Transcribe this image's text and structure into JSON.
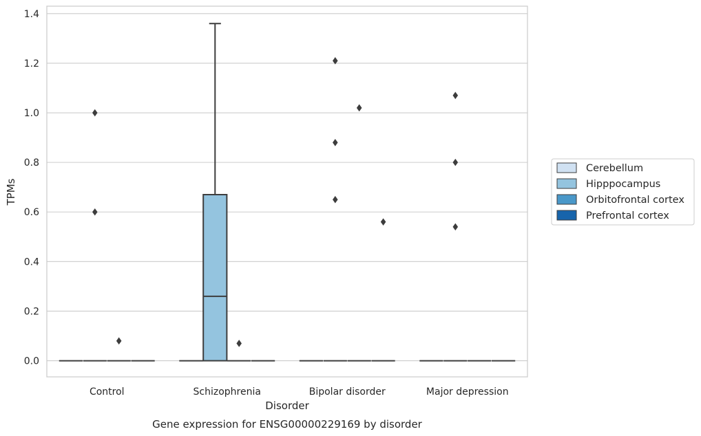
{
  "chart_data": {
    "type": "box",
    "xlabel": "Disorder",
    "ylabel": "TPMs",
    "caption": "Gene expression for ENSG00000229169 by disorder",
    "ylim": [
      -0.065,
      1.43
    ],
    "yticks": [
      0.0,
      0.2,
      0.4,
      0.6,
      0.8,
      1.0,
      1.2,
      1.4
    ],
    "ytick_labels": [
      "0.0",
      "0.2",
      "0.4",
      "0.6",
      "0.8",
      "1.0",
      "1.2",
      "1.4"
    ],
    "grid": "horizontal",
    "legend_position": "right",
    "categories": [
      "Control",
      "Schizophrenia",
      "Bipolar disorder",
      "Major depression"
    ],
    "series": [
      {
        "name": "Cerebellum",
        "color": "#d0e1f2",
        "boxes": [
          {
            "category": "Control",
            "q1": 0,
            "median": 0,
            "q3": 0,
            "whisker_low": 0,
            "whisker_high": 0,
            "outliers": []
          },
          {
            "category": "Schizophrenia",
            "q1": 0,
            "median": 0,
            "q3": 0,
            "whisker_low": 0,
            "whisker_high": 0,
            "outliers": []
          },
          {
            "category": "Bipolar disorder",
            "q1": 0,
            "median": 0,
            "q3": 0,
            "whisker_low": 0,
            "whisker_high": 0,
            "outliers": []
          },
          {
            "category": "Major depression",
            "q1": 0,
            "median": 0,
            "q3": 0,
            "whisker_low": 0,
            "whisker_high": 0,
            "outliers": []
          }
        ]
      },
      {
        "name": "Hipppocampus",
        "color": "#94c4df",
        "boxes": [
          {
            "category": "Control",
            "q1": 0,
            "median": 0,
            "q3": 0,
            "whisker_low": 0,
            "whisker_high": 0,
            "outliers": [
              0.6,
              1.0
            ]
          },
          {
            "category": "Schizophrenia",
            "q1": 0,
            "median": 0.26,
            "q3": 0.67,
            "whisker_low": 0,
            "whisker_high": 1.36,
            "outliers": []
          },
          {
            "category": "Bipolar disorder",
            "q1": 0,
            "median": 0,
            "q3": 0,
            "whisker_low": 0,
            "whisker_high": 0,
            "outliers": [
              0.65,
              0.88,
              1.21
            ]
          },
          {
            "category": "Major depression",
            "q1": 0,
            "median": 0,
            "q3": 0,
            "whisker_low": 0,
            "whisker_high": 0,
            "outliers": [
              0.54,
              0.8,
              1.07
            ]
          }
        ]
      },
      {
        "name": "Orbitofrontal cortex",
        "color": "#4a98c9",
        "boxes": [
          {
            "category": "Control",
            "q1": 0,
            "median": 0,
            "q3": 0,
            "whisker_low": 0,
            "whisker_high": 0,
            "outliers": [
              0.08
            ]
          },
          {
            "category": "Schizophrenia",
            "q1": 0,
            "median": 0,
            "q3": 0,
            "whisker_low": 0,
            "whisker_high": 0,
            "outliers": [
              0.07
            ]
          },
          {
            "category": "Bipolar disorder",
            "q1": 0,
            "median": 0,
            "q3": 0,
            "whisker_low": 0,
            "whisker_high": 0,
            "outliers": [
              1.02
            ]
          },
          {
            "category": "Major depression",
            "q1": 0,
            "median": 0,
            "q3": 0,
            "whisker_low": 0,
            "whisker_high": 0,
            "outliers": []
          }
        ]
      },
      {
        "name": "Prefrontal cortex",
        "color": "#1764ab",
        "boxes": [
          {
            "category": "Control",
            "q1": 0,
            "median": 0,
            "q3": 0,
            "whisker_low": 0,
            "whisker_high": 0,
            "outliers": []
          },
          {
            "category": "Schizophrenia",
            "q1": 0,
            "median": 0,
            "q3": 0,
            "whisker_low": 0,
            "whisker_high": 0,
            "outliers": []
          },
          {
            "category": "Bipolar disorder",
            "q1": 0,
            "median": 0,
            "q3": 0,
            "whisker_low": 0,
            "whisker_high": 0,
            "outliers": [
              0.56
            ]
          },
          {
            "category": "Major depression",
            "q1": 0,
            "median": 0,
            "q3": 0,
            "whisker_low": 0,
            "whisker_high": 0,
            "outliers": []
          }
        ]
      }
    ]
  }
}
